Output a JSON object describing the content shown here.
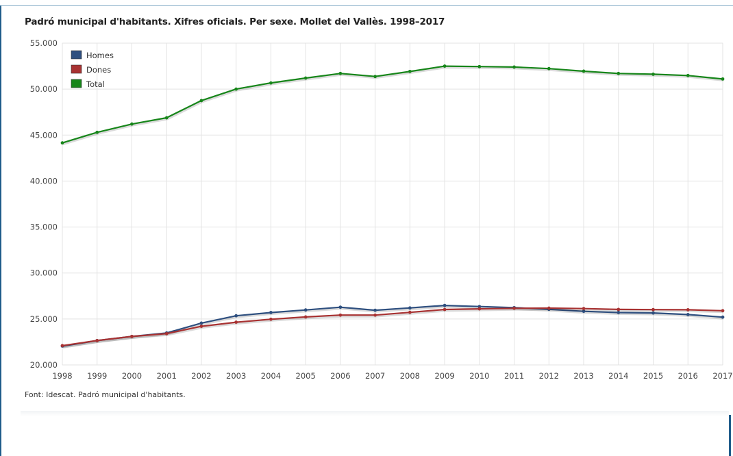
{
  "title": "Padró municipal d'habitants. Xifres oficials. Per sexe. Mollet del Vallès. 1998–2017",
  "source": "Font: Idescat. Padró municipal d'habitants.",
  "colors": {
    "homes": "#2e4f7f",
    "dones": "#a83232",
    "total": "#17861a",
    "grid": "#e3e3e3",
    "frame": "#1f5c8a"
  },
  "chart_data": {
    "type": "line",
    "title": "Padró municipal d'habitants. Xifres oficials. Per sexe. Mollet del Vallès. 1998–2017",
    "xlabel": "",
    "ylabel": "",
    "ylim": [
      20000,
      55000
    ],
    "yticks": [
      20000,
      25000,
      30000,
      35000,
      40000,
      45000,
      50000,
      55000
    ],
    "ytick_labels": [
      "20.000",
      "25.000",
      "30.000",
      "35.000",
      "40.000",
      "45.000",
      "50.000",
      "55.000"
    ],
    "grid": true,
    "legend_position": "top-left",
    "categories": [
      "1998",
      "1999",
      "2000",
      "2001",
      "2002",
      "2003",
      "2004",
      "2005",
      "2006",
      "2007",
      "2008",
      "2009",
      "2010",
      "2011",
      "2012",
      "2013",
      "2014",
      "2015",
      "2016",
      "2017"
    ],
    "series": [
      {
        "name": "Homes",
        "color": "#2e4f7f",
        "values": [
          22050,
          22650,
          23100,
          23480,
          24550,
          25350,
          25700,
          25980,
          26280,
          25950,
          26200,
          26470,
          26350,
          26230,
          26050,
          25830,
          25700,
          25650,
          25480,
          25200
        ]
      },
      {
        "name": "Dones",
        "color": "#a83232",
        "values": [
          22100,
          22650,
          23100,
          23400,
          24200,
          24650,
          24970,
          25220,
          25420,
          25420,
          25720,
          26030,
          26100,
          26160,
          26180,
          26130,
          26040,
          26020,
          26000,
          25900
        ]
      },
      {
        "name": "Total",
        "color": "#17861a",
        "values": [
          44150,
          45300,
          46200,
          46880,
          48750,
          50000,
          50670,
          51200,
          51700,
          51370,
          51920,
          52500,
          52450,
          52400,
          52230,
          51950,
          51700,
          51620,
          51480,
          51100
        ]
      }
    ]
  }
}
